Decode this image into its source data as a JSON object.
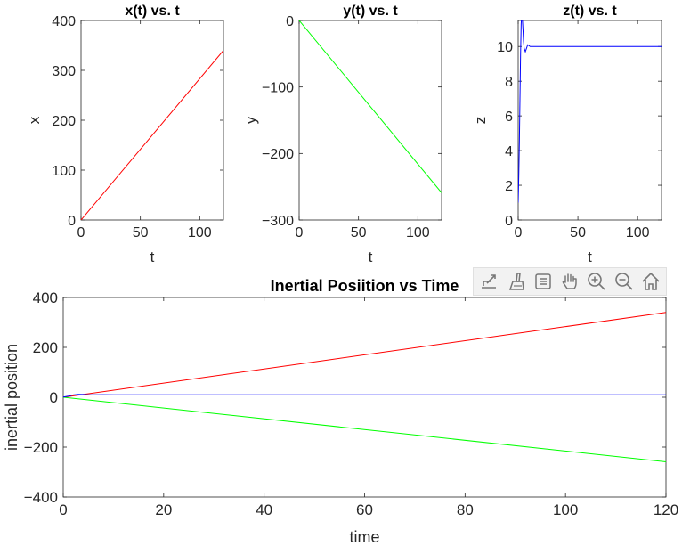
{
  "figure": {
    "toolbar": [
      "export-icon",
      "brush-icon",
      "datatips-icon",
      "pan-hand-icon",
      "zoom-in-icon",
      "zoom-out-icon",
      "home-icon"
    ]
  },
  "chart_data": [
    {
      "type": "line",
      "title": "x(t) vs. t",
      "xlabel": "t",
      "ylabel": "x",
      "xlim": [
        0,
        120
      ],
      "ylim": [
        0,
        400
      ],
      "xticks": [
        0,
        50,
        100
      ],
      "yticks": [
        0,
        100,
        200,
        300,
        400
      ],
      "grid": false,
      "series": [
        {
          "color": "#ff0000",
          "x": [
            0,
            120
          ],
          "y": [
            0,
            340
          ]
        }
      ]
    },
    {
      "type": "line",
      "title": "y(t) vs. t",
      "xlabel": "t",
      "ylabel": "y",
      "xlim": [
        0,
        120
      ],
      "ylim": [
        -300,
        0
      ],
      "xticks": [
        0,
        50,
        100
      ],
      "yticks": [
        -300,
        -200,
        -100,
        0
      ],
      "grid": false,
      "series": [
        {
          "color": "#00ff00",
          "x": [
            0,
            120
          ],
          "y": [
            0,
            -259
          ]
        }
      ]
    },
    {
      "type": "line",
      "title": "z(t) vs. t",
      "xlabel": "t",
      "ylabel": "z",
      "xlim": [
        0,
        120
      ],
      "ylim": [
        0,
        11.5
      ],
      "xticks": [
        0,
        50,
        100
      ],
      "yticks": [
        0,
        2,
        4,
        6,
        8,
        10
      ],
      "grid": false,
      "series": [
        {
          "color": "#0000ff",
          "x": [
            0,
            0.5,
            1,
            1.5,
            2,
            2.5,
            3,
            3.5,
            4,
            4.5,
            5,
            6,
            7,
            8,
            9,
            10,
            12,
            15,
            20,
            120
          ],
          "y": [
            1,
            2.5,
            4.5,
            7,
            9.5,
            11.3,
            11.8,
            11.6,
            11.0,
            10.3,
            9.9,
            9.7,
            9.9,
            10.1,
            10.05,
            10.0,
            10.0,
            10.0,
            10.0,
            10.0
          ]
        }
      ]
    },
    {
      "type": "line",
      "title": "Inertial Posiition vs Time",
      "xlabel": "time",
      "ylabel": "inertial position",
      "xlim": [
        0,
        120
      ],
      "ylim": [
        -400,
        400
      ],
      "xticks": [
        0,
        20,
        40,
        60,
        80,
        100,
        120
      ],
      "yticks": [
        -400,
        -200,
        0,
        200,
        400
      ],
      "grid": false,
      "series": [
        {
          "color": "#ff0000",
          "x": [
            0,
            120
          ],
          "y": [
            0,
            340
          ]
        },
        {
          "color": "#00ff00",
          "x": [
            0,
            120
          ],
          "y": [
            0,
            -259
          ]
        },
        {
          "color": "#0000ff",
          "x": [
            0,
            1,
            2,
            3,
            4,
            5,
            6,
            8,
            10,
            120
          ],
          "y": [
            1,
            4.5,
            9.5,
            11.8,
            11.0,
            9.9,
            9.7,
            10.1,
            10.0,
            10.0
          ]
        }
      ]
    }
  ]
}
